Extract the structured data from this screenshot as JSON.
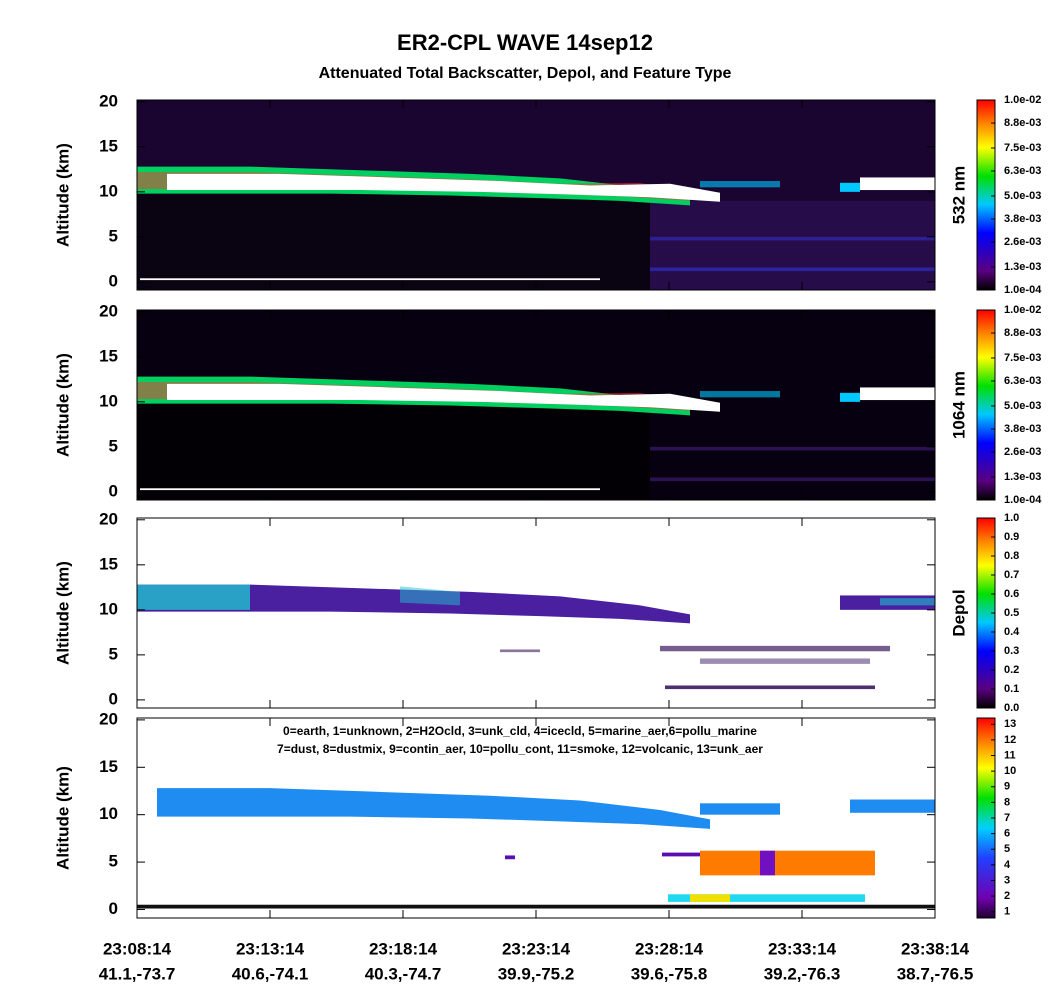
{
  "title": "ER2-CPL WAVE 14sep12",
  "subtitle": "Attenuated Total Backscatter, Depol, and Feature Type",
  "x_time_labels": [
    "23:08:14",
    "23:13:14",
    "23:18:14",
    "23:23:14",
    "23:28:14",
    "23:33:14",
    "23:38:14"
  ],
  "x_position_labels": [
    "41.1,-73.7",
    "40.6,-74.1",
    "40.3,-74.7",
    "39.9,-75.2",
    "39.6,-75.8",
    "39.2,-76.3",
    "38.7,-76.5"
  ],
  "chart_data": [
    {
      "type": "heatmap",
      "ylabel": "Altitude (km)",
      "ylim": [
        -0.9,
        20.2
      ],
      "yticks": [
        0,
        5,
        10,
        15,
        20
      ],
      "colorbar": {
        "label": "532 nm",
        "clim": [
          0.0001,
          0.01
        ],
        "ticks": [
          {
            "value": 0.0001,
            "label": "1.0e-04"
          },
          {
            "value": 0.0013,
            "label": "1.3e-03"
          },
          {
            "value": 0.0026,
            "label": "2.6e-03"
          },
          {
            "value": 0.0038,
            "label": "3.8e-03"
          },
          {
            "value": 0.005,
            "label": "5.0e-03"
          },
          {
            "value": 0.0063,
            "label": "6.3e-03"
          },
          {
            "value": 0.0075,
            "label": "7.5e-03"
          },
          {
            "value": 0.0088,
            "label": "8.8e-03"
          },
          {
            "value": 0.01,
            "label": "1.0e-02"
          }
        ]
      }
    },
    {
      "type": "heatmap",
      "ylabel": "Altitude (km)",
      "ylim": [
        -0.9,
        20.2
      ],
      "yticks": [
        0,
        5,
        10,
        15,
        20
      ],
      "colorbar": {
        "label": "1064 nm",
        "clim": [
          0.0001,
          0.01
        ],
        "ticks": [
          {
            "value": 0.0001,
            "label": "1.0e-04"
          },
          {
            "value": 0.0013,
            "label": "1.3e-03"
          },
          {
            "value": 0.0026,
            "label": "2.6e-03"
          },
          {
            "value": 0.0038,
            "label": "3.8e-03"
          },
          {
            "value": 0.005,
            "label": "5.0e-03"
          },
          {
            "value": 0.0063,
            "label": "6.3e-03"
          },
          {
            "value": 0.0075,
            "label": "7.5e-03"
          },
          {
            "value": 0.0088,
            "label": "8.8e-03"
          },
          {
            "value": 0.01,
            "label": "1.0e-02"
          }
        ]
      }
    },
    {
      "type": "heatmap",
      "ylabel": "Altitude (km)",
      "ylim": [
        -0.9,
        20.2
      ],
      "yticks": [
        0,
        5,
        10,
        15,
        20
      ],
      "colorbar": {
        "label": "Depol",
        "clim": [
          0,
          1
        ],
        "ticks": [
          {
            "value": 0,
            "label": "0.0"
          },
          0.1,
          0.2,
          0.3,
          0.4,
          0.5,
          0.6,
          0.7,
          0.8,
          0.9,
          {
            "value": 1,
            "label": "1.0"
          }
        ]
      }
    },
    {
      "type": "heatmap",
      "ylabel": "Altitude (km)",
      "ylim": [
        -0.9,
        20.2
      ],
      "yticks": [
        0,
        5,
        10,
        15,
        20
      ],
      "annotations": [
        "0=earth, 1=unknown, 2=H2Ocld, 3=unk_cld, 4=icecld, 5=marine_aer,6=pollu_marine",
        "7=dust, 8=dustmix, 9=contin_aer, 10=pollu_cont, 11=smoke, 12=volcanic, 13=unk_aer"
      ],
      "colorbar": {
        "clim": [
          0.6,
          13.4
        ],
        "ticks": [
          1,
          2,
          3,
          4,
          5,
          6,
          7,
          8,
          9,
          10,
          11,
          12,
          13
        ]
      }
    }
  ]
}
